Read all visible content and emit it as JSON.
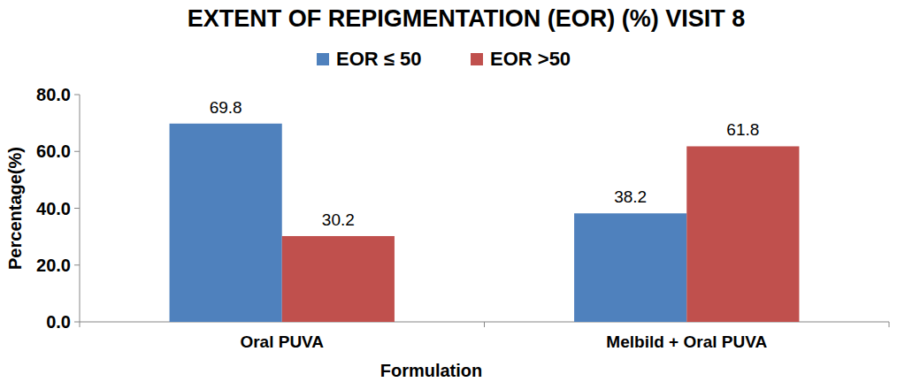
{
  "chart_data": {
    "type": "bar",
    "title": "EXTENT OF REPIGMENTATION (EOR) (%) VISIT 8",
    "x_label": "Formulation",
    "y_label": "Percentage(%)",
    "categories": [
      "Oral PUVA",
      "Melbild + Oral PUVA"
    ],
    "series": [
      {
        "name": "EOR ≤ 50",
        "color": "#4f81bd",
        "values": [
          69.8,
          38.2
        ]
      },
      {
        "name": "EOR >50",
        "color": "#c0504d",
        "values": [
          30.2,
          61.8
        ]
      }
    ],
    "ylim": [
      0,
      80
    ],
    "yticks": [
      {
        "value": 0,
        "label": "0.0"
      },
      {
        "value": 20,
        "label": "20.0"
      },
      {
        "value": 40,
        "label": "40.0"
      },
      {
        "value": 60,
        "label": "60.0"
      },
      {
        "value": 80,
        "label": "80.0"
      }
    ],
    "grid": false,
    "legend": "top",
    "data_labels": true
  }
}
